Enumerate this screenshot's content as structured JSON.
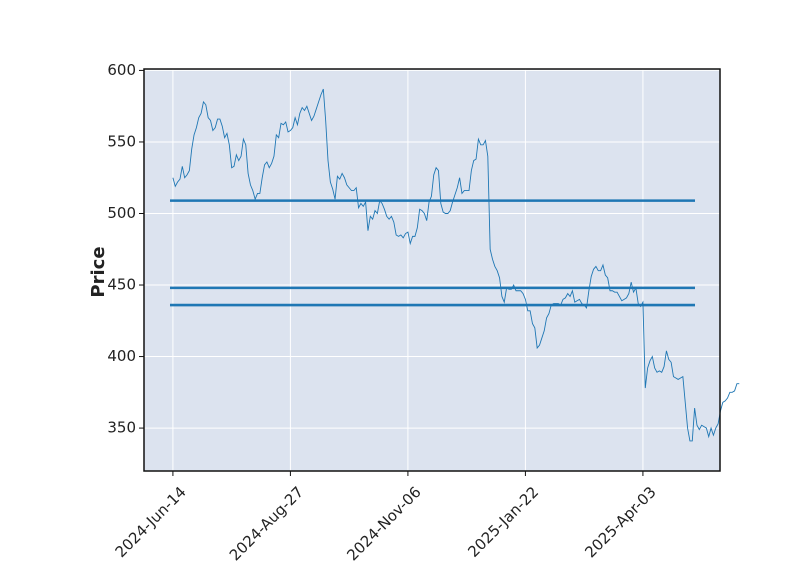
{
  "chart_data": {
    "type": "line",
    "ylabel": "Price",
    "series": [
      {
        "color": "#1f77b4",
        "values": [
          525,
          519,
          522,
          524,
          533,
          525,
          527,
          530,
          545,
          555,
          560,
          567,
          570,
          578,
          576,
          567,
          565,
          558,
          560,
          566,
          566,
          561,
          553,
          556,
          548,
          532,
          533,
          541,
          537,
          540,
          552,
          548,
          528,
          520,
          516,
          510,
          514,
          514,
          525,
          534,
          536,
          532,
          535,
          540,
          555,
          553,
          563,
          562,
          564,
          557,
          558,
          560,
          567,
          562,
          570,
          574,
          572,
          575,
          570,
          565,
          568,
          573,
          578,
          583,
          587,
          565,
          537,
          522,
          517,
          510,
          526,
          524,
          528,
          525,
          520,
          518,
          516,
          516,
          518,
          504,
          507,
          505,
          508,
          488,
          498,
          496,
          502,
          500,
          509,
          507,
          503,
          498,
          496,
          498,
          494,
          485,
          484,
          485,
          483,
          486,
          487,
          479,
          484,
          484,
          490,
          503,
          502,
          500,
          495,
          508,
          512,
          527,
          532,
          530,
          507,
          501,
          500,
          500,
          502,
          508,
          513,
          518,
          525,
          514,
          516,
          516,
          516,
          530,
          537,
          538,
          552,
          548,
          548,
          551,
          540,
          475,
          468,
          463,
          460,
          455,
          442,
          438,
          448,
          447,
          447,
          450,
          446,
          446,
          446,
          444,
          440,
          432,
          432,
          423,
          420,
          406,
          408,
          413,
          418,
          427,
          430,
          436,
          437,
          437,
          437,
          436,
          440,
          441,
          444,
          442,
          446,
          438,
          439,
          440,
          437,
          436,
          434,
          446,
          456,
          461,
          463,
          460,
          460,
          464,
          457,
          455,
          446,
          446,
          445,
          445,
          442,
          439,
          440,
          441,
          444,
          452,
          445,
          448,
          437,
          435,
          438,
          378,
          392,
          397,
          400,
          392,
          389,
          390,
          389,
          393,
          404,
          398,
          396,
          386,
          385,
          384,
          385,
          386,
          368,
          350,
          341,
          341,
          364,
          352,
          349,
          352,
          351,
          350,
          344,
          350,
          345,
          350,
          353,
          362,
          368,
          369,
          371,
          375,
          375,
          376,
          381,
          381
        ]
      }
    ],
    "hlines": {
      "color": "#1f77b4",
      "values": [
        509,
        448,
        436
      ]
    },
    "xlim": [
      -12.3,
      232.8
    ],
    "xticks": [
      {
        "value": 0,
        "label": "2024-Jun-14"
      },
      {
        "value": 50,
        "label": "2024-Aug-27"
      },
      {
        "value": 100,
        "label": "2024-Nov-06"
      },
      {
        "value": 150,
        "label": "2025-Jan-22"
      },
      {
        "value": 200,
        "label": "2025-Apr-03"
      }
    ],
    "ylim": [
      320,
      601
    ],
    "yticks": [
      350,
      400,
      450,
      500,
      550,
      600
    ],
    "grid": true
  }
}
